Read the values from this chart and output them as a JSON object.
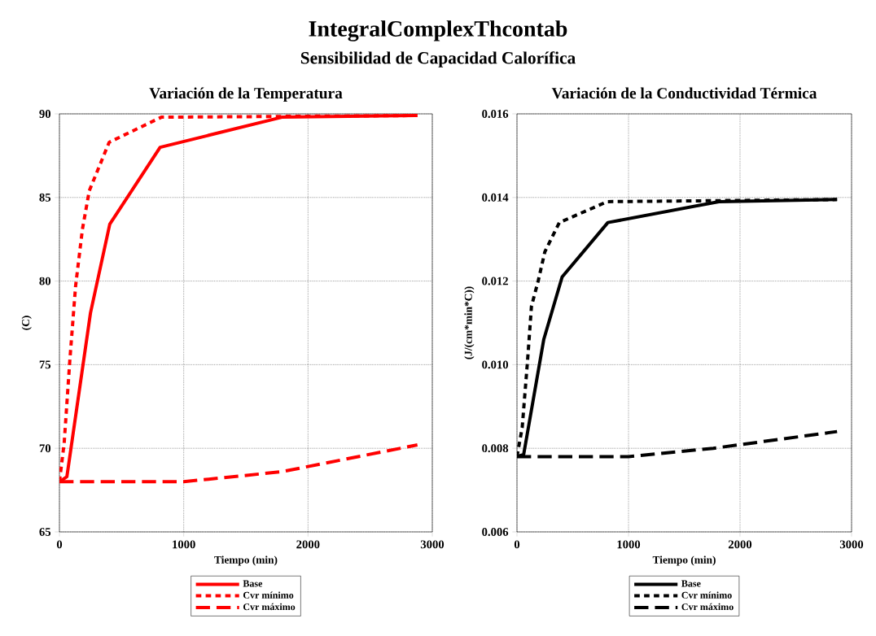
{
  "chart_data": [
    {
      "type": "line",
      "title": "Variación de la Temperatura",
      "annotations": [
        "IntegralComplexThcontab",
        "Sensibilidad de Capacidad Calorífica"
      ],
      "xlabel": "Tiempo (min)",
      "ylabel": "(C)",
      "xlim": [
        0,
        3000
      ],
      "xticks": [
        0,
        1000,
        2000,
        3000
      ],
      "ylim": [
        65,
        90
      ],
      "yticks": [
        65,
        70,
        75,
        80,
        85,
        90
      ],
      "grid": true,
      "legend": "bottom",
      "series": [
        {
          "name": "Base",
          "color": "#ff0000",
          "line_style": "solid",
          "x": [
            0,
            60,
            250,
            405,
            810,
            1790,
            2880
          ],
          "values": [
            68.0,
            68.3,
            78.1,
            83.4,
            88.0,
            89.8,
            89.9
          ]
        },
        {
          "name": "Cvr mínimo",
          "color": "#ff0000",
          "line_style": "dotted",
          "x": [
            0,
            38,
            84,
            130,
            185,
            240,
            400,
            820,
            2880
          ],
          "values": [
            68.0,
            70.3,
            75.3,
            79.7,
            83.1,
            85.4,
            88.3,
            89.8,
            89.9
          ]
        },
        {
          "name": "Cvr máximo",
          "color": "#ff0000",
          "line_style": "dashed",
          "x": [
            0,
            1000,
            1790,
            2880
          ],
          "values": [
            68.0,
            68.0,
            68.6,
            70.2
          ]
        }
      ]
    },
    {
      "type": "line",
      "title": "Variación de la Conductividad Térmica",
      "xlabel": "Tiempo (min)",
      "ylabel": "(J/(cm*min*C))",
      "xlim": [
        0,
        3000
      ],
      "xticks": [
        0,
        1000,
        2000,
        3000
      ],
      "ylim": [
        0.006,
        0.016
      ],
      "yticks": [
        {
          "value": 0.006,
          "label": "0.006"
        },
        {
          "value": 0.008,
          "label": "0.008"
        },
        {
          "value": 0.01,
          "label": "0.010"
        },
        {
          "value": 0.012,
          "label": "0.012"
        },
        {
          "value": 0.014,
          "label": "0.014"
        },
        {
          "value": 0.016,
          "label": "0.016"
        }
      ],
      "grid": true,
      "legend": "bottom",
      "series": [
        {
          "name": "Base",
          "color": "#000000",
          "line_style": "solid",
          "x": [
            0,
            60,
            240,
            405,
            815,
            1810,
            2870
          ],
          "values": [
            0.0078,
            0.00785,
            0.0106,
            0.0121,
            0.0134,
            0.0139,
            0.01395
          ]
        },
        {
          "name": "Cvr mínimo",
          "color": "#000000",
          "line_style": "dotted",
          "x": [
            0,
            47,
            95,
            130,
            190,
            250,
            380,
            810,
            2870
          ],
          "values": [
            0.0078,
            0.0085,
            0.0101,
            0.0114,
            0.012,
            0.0127,
            0.0134,
            0.0139,
            0.01395
          ]
        },
        {
          "name": "Cvr máximo",
          "color": "#000000",
          "line_style": "dashed",
          "x": [
            0,
            1000,
            1760,
            2870
          ],
          "values": [
            0.0078,
            0.0078,
            0.008,
            0.0084
          ]
        }
      ]
    }
  ]
}
